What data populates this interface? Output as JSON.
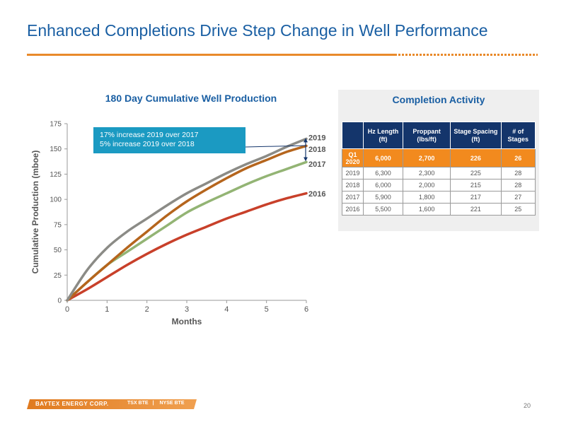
{
  "slide": {
    "title": "Enhanced Completions Drive Step Change in Well Performance",
    "page_number": "20"
  },
  "footer": {
    "company": "BAYTEX ENERGY CORP.",
    "ticker_tsx": "TSX BTE",
    "ticker_nyse": "NYSE BTE",
    "brand_color": "#e98a2b"
  },
  "callout": {
    "line1": "17% increase 2019 over 2017",
    "line2": "5% increase 2019 over 2018",
    "color": "#1b9ac2"
  },
  "chart_data": {
    "type": "line",
    "title": "180 Day Cumulative Well Production",
    "xlabel": "Months",
    "ylabel": "Cumulative Production (mboe)",
    "xlim": [
      0,
      6
    ],
    "ylim": [
      0,
      175
    ],
    "x_ticks": [
      0,
      1,
      2,
      3,
      4,
      5,
      6
    ],
    "y_ticks": [
      0,
      25,
      50,
      75,
      100,
      125,
      150,
      175
    ],
    "grid": false,
    "legend": "end-of-line labels",
    "x": [
      0,
      0.5,
      1,
      1.5,
      2,
      2.5,
      3,
      3.5,
      4,
      4.5,
      5,
      5.5,
      6
    ],
    "series": [
      {
        "name": "2019",
        "color": "#8b8b86",
        "values": [
          0,
          30,
          52,
          68,
          81,
          94,
          106,
          116,
          126,
          135,
          143,
          152,
          160
        ]
      },
      {
        "name": "2018",
        "color": "#b5651d",
        "values": [
          0,
          18,
          35,
          52,
          68,
          84,
          98,
          110,
          121,
          131,
          139,
          147,
          153
        ]
      },
      {
        "name": "2017",
        "color": "#93b474",
        "values": [
          0,
          18,
          35,
          48,
          61,
          74,
          87,
          97,
          106,
          115,
          123,
          130,
          137
        ]
      },
      {
        "name": "2016",
        "color": "#c8402a",
        "values": [
          0,
          11,
          23,
          35,
          46,
          56,
          65,
          73,
          81,
          88,
          95,
          101,
          106
        ]
      }
    ]
  },
  "table": {
    "title": "Completion Activity",
    "headers": [
      "",
      "Hz Length (ft)",
      "Proppant (lbs/ft)",
      "Stage Spacing (ft)",
      "# of Stages"
    ],
    "rows": [
      [
        "Q1 2020",
        "6,000",
        "2,700",
        "226",
        "26"
      ],
      [
        "2019",
        "6,300",
        "2,300",
        "225",
        "28"
      ],
      [
        "2018",
        "6,000",
        "2,000",
        "215",
        "28"
      ],
      [
        "2017",
        "5,900",
        "1,800",
        "217",
        "27"
      ],
      [
        "2016",
        "5,500",
        "1,600",
        "221",
        "25"
      ]
    ],
    "header_color": "#14356b",
    "highlight_color": "#f28a1e"
  }
}
